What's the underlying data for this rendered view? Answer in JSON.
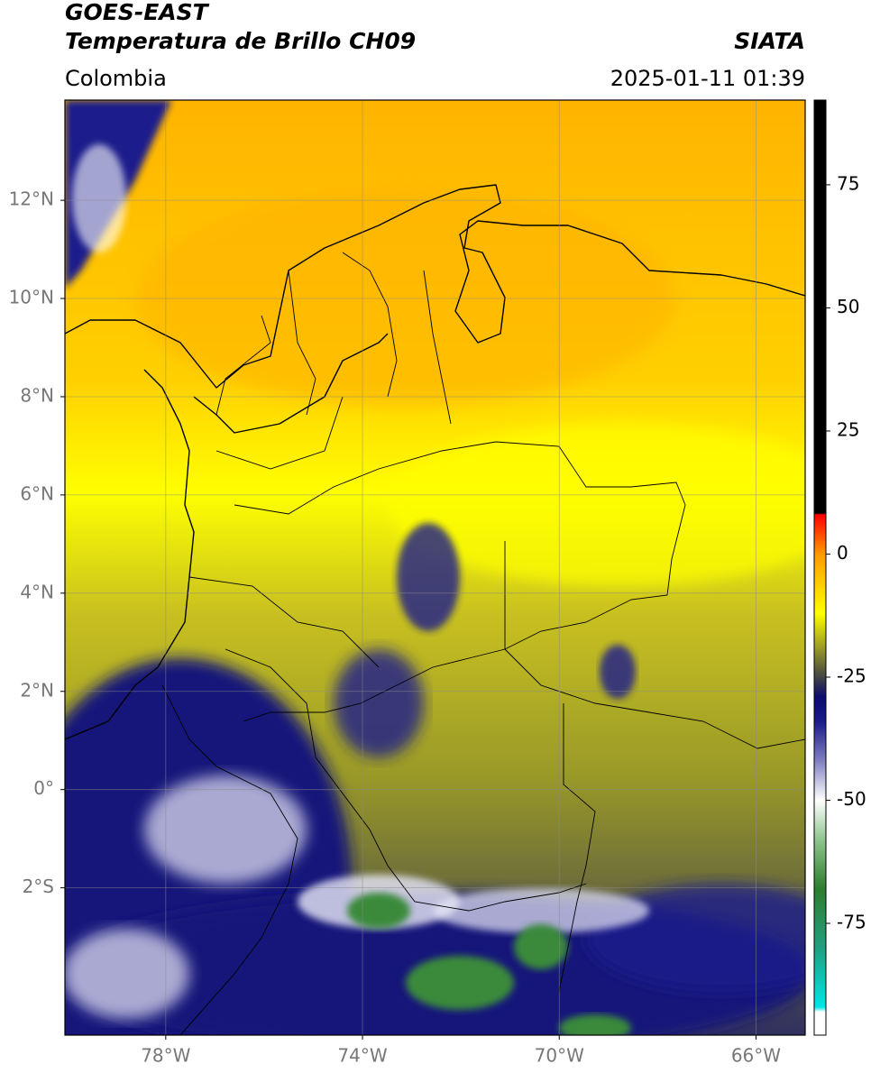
{
  "header": {
    "title_top": "GOES-EAST",
    "title": "Temperatura de Brillo CH09",
    "source": "SIATA",
    "region": "Colombia",
    "datetime": "2025-01-11 01:39"
  },
  "map": {
    "lonlim": [
      -80.05,
      -65
    ],
    "latlim": [
      -5,
      14.04
    ],
    "lonticks": [
      {
        "value": -78,
        "label": "78°W"
      },
      {
        "value": -74,
        "label": "74°W"
      },
      {
        "value": -70,
        "label": "70°W"
      },
      {
        "value": -66,
        "label": "66°W"
      }
    ],
    "latticks": [
      {
        "value": 12,
        "label": "12°N"
      },
      {
        "value": 10,
        "label": "10°N"
      },
      {
        "value": 8,
        "label": "8°N"
      },
      {
        "value": 6,
        "label": "6°N"
      },
      {
        "value": 4,
        "label": "4°N"
      },
      {
        "value": 2,
        "label": "2°N"
      },
      {
        "value": 0,
        "label": "0°"
      },
      {
        "value": -2,
        "label": "2°S"
      }
    ],
    "grid": true
  },
  "colorbar": {
    "lim": [
      -97.7,
      92.2
    ],
    "ticks": [
      75,
      50,
      25,
      0,
      -25,
      -50,
      -75
    ],
    "stops": [
      {
        "value": -97.7,
        "color": "#ffffff"
      },
      {
        "value": -93,
        "color": "#ffffff"
      },
      {
        "value": -92,
        "color": "#00e5e5"
      },
      {
        "value": -80,
        "color": "#20a080"
      },
      {
        "value": -68,
        "color": "#2e7d2e"
      },
      {
        "value": -58,
        "color": "#8fc58f"
      },
      {
        "value": -50,
        "color": "#ffffff"
      },
      {
        "value": -42,
        "color": "#8080c0"
      },
      {
        "value": -34,
        "color": "#1a1a8c"
      },
      {
        "value": -29,
        "color": "#0a0a70"
      },
      {
        "value": -25,
        "color": "#444444"
      },
      {
        "value": -20,
        "color": "#8c8c2a"
      },
      {
        "value": -12,
        "color": "#ffff00"
      },
      {
        "value": 0,
        "color": "#ff9900"
      },
      {
        "value": 8,
        "color": "#ff0000"
      },
      {
        "value": 8.3,
        "color": "#000000"
      },
      {
        "value": 92.2,
        "color": "#000000"
      }
    ]
  }
}
